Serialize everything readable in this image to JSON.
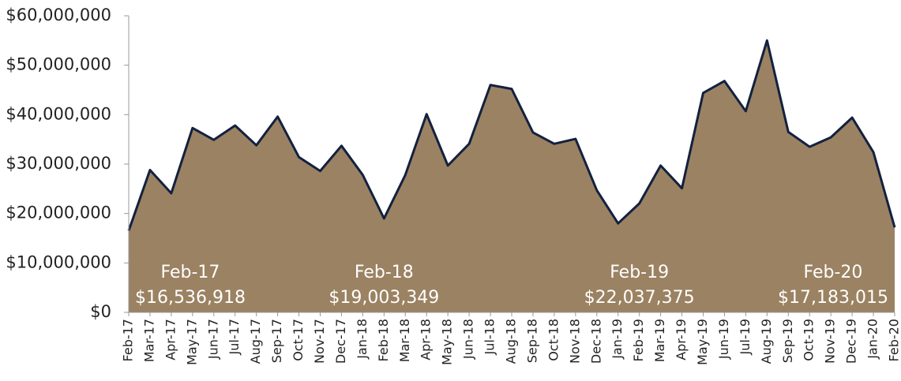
{
  "chart_data": {
    "type": "area",
    "categories": [
      "Feb-17",
      "Mar-17",
      "Apr-17",
      "May-17",
      "Jun-17",
      "Jul-17",
      "Aug-17",
      "Sep-17",
      "Oct-17",
      "Nov-17",
      "Dec-17",
      "Jan-18",
      "Feb-18",
      "Mar-18",
      "Apr-18",
      "May-18",
      "Jun-18",
      "Jul-18",
      "Aug-18",
      "Sep-18",
      "Oct-18",
      "Nov-18",
      "Dec-18",
      "Jan-19",
      "Feb-19",
      "Mar-19",
      "Apr-19",
      "May-19",
      "Jun-19",
      "Jul-19",
      "Aug-19",
      "Sep-19",
      "Oct-19",
      "Nov-19",
      "Dec-19",
      "Jan-20",
      "Feb-20"
    ],
    "values": [
      16536918,
      28800000,
      24100000,
      37300000,
      34900000,
      37800000,
      33800000,
      39600000,
      31400000,
      28600000,
      33700000,
      27800000,
      19003349,
      27800000,
      40100000,
      29700000,
      34100000,
      46000000,
      45200000,
      36400000,
      34100000,
      35100000,
      24700000,
      18000000,
      22037375,
      29700000,
      25100000,
      44400000,
      46800000,
      40700000,
      55000000,
      36500000,
      33500000,
      35400000,
      39400000,
      32400000,
      17183015
    ],
    "value_labels": [
      "$16,536,918",
      null,
      null,
      null,
      null,
      null,
      null,
      null,
      null,
      null,
      null,
      null,
      "$19,003,349",
      null,
      null,
      null,
      null,
      null,
      null,
      null,
      null,
      null,
      null,
      null,
      "$22,037,375",
      null,
      null,
      null,
      null,
      null,
      null,
      null,
      null,
      null,
      null,
      null,
      "$17,183,015"
    ],
    "color": "#9b8262",
    "line_color": "#13213f",
    "ylim": [
      0,
      60000000
    ],
    "yticks": [
      {
        "value": 0,
        "label": "$0"
      },
      {
        "value": 10000000,
        "label": "$10,000,000"
      },
      {
        "value": 20000000,
        "label": "$20,000,000"
      },
      {
        "value": 30000000,
        "label": "$30,000,000"
      },
      {
        "value": 40000000,
        "label": "$40,000,000"
      },
      {
        "value": 50000000,
        "label": "$50,000,000"
      },
      {
        "value": 60000000,
        "label": "$60,000,000"
      }
    ],
    "grid": false
  }
}
